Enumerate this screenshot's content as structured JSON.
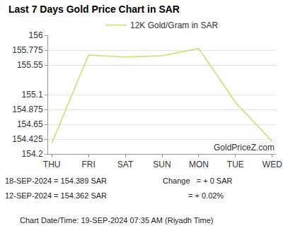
{
  "chart_data": {
    "type": "line",
    "title": "Last 7 Days Gold Price Chart in SAR",
    "categories": [
      "THU",
      "FRI",
      "SAT",
      "SUN",
      "MON",
      "TUE",
      "WED"
    ],
    "series": [
      {
        "name": "12K Gold/Gram in SAR",
        "color": "#c5e06b",
        "values": [
          154.362,
          155.7,
          155.67,
          155.69,
          155.8,
          154.98,
          154.389
        ]
      }
    ],
    "ylim": [
      154.2,
      156
    ],
    "yticks": [
      154.2,
      154.425,
      154.65,
      154.875,
      155.1,
      155.55,
      155.775,
      156
    ],
    "grid": true,
    "legend": "top",
    "annotations": [
      "GoldPriceZ.com",
      "18-SEP-2024 = 154.389 SAR",
      "Change   = + 0 SAR",
      "12-SEP-2024 = 154.362 SAR",
      "= + 0.02%",
      "Chart Date/Time: 19-SEP-2024 07:35 AM (Riyadh Time)"
    ]
  }
}
